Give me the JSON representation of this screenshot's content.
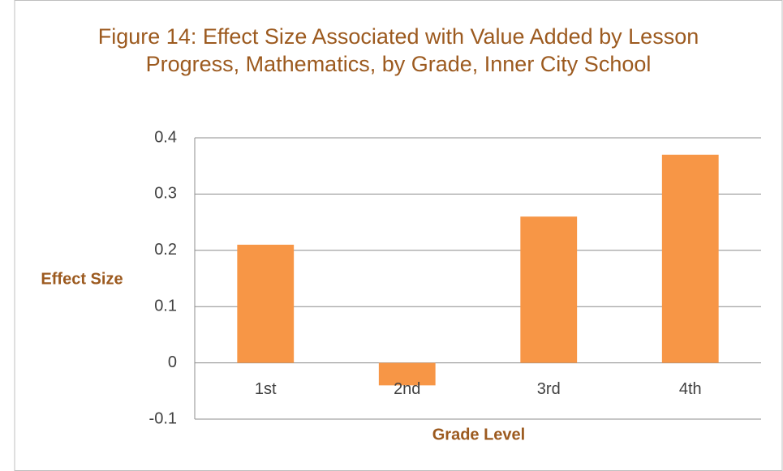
{
  "chart_data": {
    "type": "bar",
    "title": "Figure 14: Effect Size Associated with Value Added by Lesson Progress, Mathematics, by Grade, Inner City School",
    "x_label": "Grade Level",
    "y_label": "Effect Size",
    "categories": [
      "1st",
      "2nd",
      "3rd",
      "4th"
    ],
    "values": [
      0.21,
      -0.04,
      0.26,
      0.37
    ],
    "color": "#f79646",
    "ylim": [
      -0.1,
      0.4
    ],
    "yticks": [
      -0.1,
      0,
      0.1,
      0.2,
      0.3,
      0.4
    ],
    "grid": true
  }
}
